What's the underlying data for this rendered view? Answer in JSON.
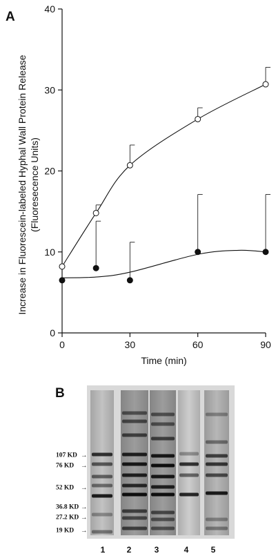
{
  "panel_a": {
    "letter": "A"
  },
  "panel_b": {
    "letter": "B",
    "markers": [
      {
        "label": "107 KD",
        "arrow": "→"
      },
      {
        "label": "76 KD",
        "arrow": "→"
      },
      {
        "label": "52 KD",
        "arrow": "→"
      },
      {
        "label": "36.8 KD",
        "arrow": "→"
      },
      {
        "label": "27.2 KD",
        "arrow": "→"
      },
      {
        "label": "19 KD",
        "arrow": "→"
      }
    ],
    "lanes": [
      "1",
      "2",
      "3",
      "4",
      "5"
    ]
  },
  "chart_data": {
    "type": "scatter",
    "title": "",
    "xlabel": "Time (min)",
    "ylabel_line1": "Increase in Fluorescein-labeled Hyphal Wall Protein Release",
    "ylabel_line2": "(Fluoresecence Units)",
    "xlim": [
      0,
      90
    ],
    "ylim": [
      0,
      40
    ],
    "xticks": [
      0,
      30,
      60,
      90
    ],
    "yticks": [
      0,
      10,
      20,
      30,
      40
    ],
    "grid": false,
    "legend": "none",
    "series": [
      {
        "marker": "open-circle",
        "x": [
          0,
          15,
          30,
          60,
          90
        ],
        "y": [
          8.2,
          14.8,
          20.7,
          26.4,
          30.7
        ],
        "error_upper": [
          0,
          1.0,
          2.5,
          1.4,
          2.1
        ],
        "fit_curve": "smooth"
      },
      {
        "marker": "filled-circle",
        "x": [
          0,
          15,
          30,
          60,
          90
        ],
        "y": [
          6.5,
          8.0,
          6.5,
          10.0,
          10.0
        ],
        "error_upper": [
          0,
          5.8,
          4.7,
          7.1,
          7.1
        ],
        "fit_curve": "smooth"
      }
    ]
  }
}
